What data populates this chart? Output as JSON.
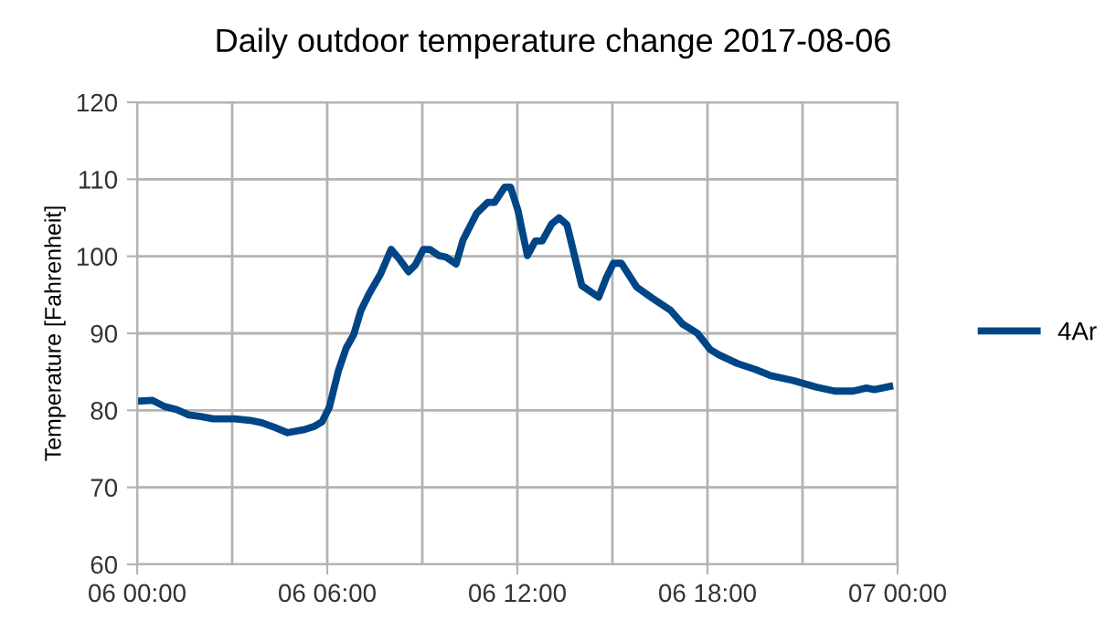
{
  "chart_data": {
    "type": "line",
    "title": "Daily outdoor temperature change 2017-08-06",
    "ylabel": "Temperature [Fahrenheit]",
    "x": [
      "2017-08-06T00:04",
      "2017-08-06T00:29",
      "2017-08-06T00:52",
      "2017-08-06T01:15",
      "2017-08-06T01:38",
      "2017-08-06T02:01",
      "2017-08-06T02:24",
      "2017-08-06T03:05",
      "2017-08-06T03:34",
      "2017-08-06T03:56",
      "2017-08-06T04:20",
      "2017-08-06T04:45",
      "2017-08-06T05:17",
      "2017-08-06T05:35",
      "2017-08-06T05:50",
      "2017-08-06T06:04",
      "2017-08-06T06:21",
      "2017-08-06T06:36",
      "2017-08-06T06:50",
      "2017-08-06T07:04",
      "2017-08-06T07:19",
      "2017-08-06T07:41",
      "2017-08-06T08:01",
      "2017-08-06T08:16",
      "2017-08-06T08:34",
      "2017-08-06T08:47",
      "2017-08-06T09:02",
      "2017-08-06T09:14",
      "2017-08-06T09:31",
      "2017-08-06T09:45",
      "2017-08-06T10:04",
      "2017-08-06T10:17",
      "2017-08-06T10:43",
      "2017-08-06T11:04",
      "2017-08-06T11:17",
      "2017-08-06T11:36",
      "2017-08-06T11:47",
      "2017-08-06T12:01",
      "2017-08-06T12:19",
      "2017-08-06T12:34",
      "2017-08-06T12:47",
      "2017-08-06T13:05",
      "2017-08-06T13:19",
      "2017-08-06T13:34",
      "2017-08-06T14:02",
      "2017-08-06T14:34",
      "2017-08-06T14:49",
      "2017-08-06T15:02",
      "2017-08-06T15:17",
      "2017-08-06T15:46",
      "2017-08-06T16:15",
      "2017-08-06T16:50",
      "2017-08-06T17:13",
      "2017-08-06T17:41",
      "2017-08-06T18:05",
      "2017-08-06T18:22",
      "2017-08-06T18:56",
      "2017-08-06T19:31",
      "2017-08-06T20:00",
      "2017-08-06T20:41",
      "2017-08-06T21:27",
      "2017-08-06T22:01",
      "2017-08-06T22:36",
      "2017-08-06T23:01",
      "2017-08-06T23:16",
      "2017-08-06T23:45"
    ],
    "series": [
      {
        "name": "4Ar",
        "color": "#004586",
        "values": [
          81.2,
          81.3,
          80.5,
          80.1,
          79.4,
          79.2,
          78.9,
          78.9,
          78.7,
          78.4,
          77.8,
          77.1,
          77.5,
          77.9,
          78.5,
          80.4,
          85.1,
          88.1,
          89.8,
          93.0,
          95.1,
          97.7,
          100.9,
          99.7,
          98.0,
          98.9,
          100.9,
          100.9,
          100.1,
          99.9,
          99.0,
          102.1,
          105.6,
          107.0,
          107.0,
          109.0,
          109.0,
          106.0,
          100.1,
          102.0,
          102.0,
          104.2,
          105.0,
          104.1,
          96.2,
          94.7,
          97.3,
          99.1,
          99.1,
          96.0,
          94.6,
          93.0,
          91.2,
          90.0,
          87.9,
          87.2,
          86.1,
          85.3,
          84.5,
          83.9,
          83.0,
          82.5,
          82.5,
          82.9,
          82.7,
          83.1
        ]
      }
    ],
    "xlim": [
      "2017-08-06T00:00",
      "2017-08-07T00:00"
    ],
    "xticks": [
      {
        "value": "2017-08-06T00:00",
        "label": "06 00:00"
      },
      {
        "value": "2017-08-06T03:00",
        "label": null
      },
      {
        "value": "2017-08-06T06:00",
        "label": "06 06:00"
      },
      {
        "value": "2017-08-06T09:00",
        "label": null
      },
      {
        "value": "2017-08-06T12:00",
        "label": "06 12:00"
      },
      {
        "value": "2017-08-06T15:00",
        "label": null
      },
      {
        "value": "2017-08-06T18:00",
        "label": "06 18:00"
      },
      {
        "value": "2017-08-06T21:00",
        "label": null
      },
      {
        "value": "2017-08-07T00:00",
        "label": "07 00:00"
      }
    ],
    "ylim": [
      60,
      120
    ],
    "yticks": [
      60,
      70,
      80,
      90,
      100,
      110,
      120
    ],
    "grid": true,
    "legend": "right",
    "marker": "none",
    "line_style": "solid"
  }
}
